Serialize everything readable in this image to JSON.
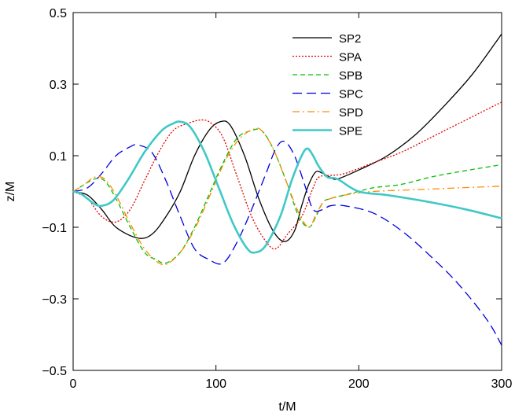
{
  "chart_data": {
    "type": "line",
    "xlabel": "t/M",
    "ylabel": "z/M",
    "xlim": [
      0,
      300
    ],
    "ylim": [
      -0.5,
      0.5
    ],
    "x_ticks": [
      0,
      100,
      200,
      300
    ],
    "x_tick_labels": [
      "0",
      "100",
      "200",
      "300"
    ],
    "y_ticks": [
      -0.5,
      -0.3,
      -0.1,
      0.1,
      0.3,
      0.5
    ],
    "y_tick_labels": [
      "−0.5",
      "−0.3",
      "−0.1",
      "0.1",
      "0.3",
      "0.5"
    ],
    "grid": false,
    "legend_position": "top-right",
    "series": [
      {
        "name": "SP2",
        "color": "#000000",
        "dash": "solid",
        "points": [
          [
            0,
            0
          ],
          [
            10,
            -0.01
          ],
          [
            20,
            -0.05
          ],
          [
            30,
            -0.1
          ],
          [
            45,
            -0.13
          ],
          [
            55,
            -0.12
          ],
          [
            65,
            -0.07
          ],
          [
            75,
            0.0
          ],
          [
            85,
            0.1
          ],
          [
            95,
            0.17
          ],
          [
            103,
            0.195
          ],
          [
            110,
            0.185
          ],
          [
            120,
            0.1
          ],
          [
            130,
            -0.02
          ],
          [
            140,
            -0.11
          ],
          [
            148,
            -0.14
          ],
          [
            155,
            -0.11
          ],
          [
            160,
            -0.04
          ],
          [
            165,
            0.02
          ],
          [
            170,
            0.055
          ],
          [
            175,
            0.05
          ],
          [
            180,
            0.04
          ],
          [
            185,
            0.035
          ],
          [
            200,
            0.06
          ],
          [
            220,
            0.1
          ],
          [
            240,
            0.16
          ],
          [
            260,
            0.24
          ],
          [
            280,
            0.33
          ],
          [
            300,
            0.44
          ]
        ]
      },
      {
        "name": "SPA",
        "color": "#e00000",
        "dash": "dotted",
        "points": [
          [
            0,
            0
          ],
          [
            10,
            -0.02
          ],
          [
            20,
            -0.07
          ],
          [
            30,
            -0.085
          ],
          [
            40,
            -0.05
          ],
          [
            50,
            0.03
          ],
          [
            60,
            0.11
          ],
          [
            70,
            0.17
          ],
          [
            80,
            0.19
          ],
          [
            90,
            0.2
          ],
          [
            97,
            0.19
          ],
          [
            105,
            0.15
          ],
          [
            115,
            0.04
          ],
          [
            125,
            -0.07
          ],
          [
            135,
            -0.14
          ],
          [
            142,
            -0.16
          ],
          [
            150,
            -0.12
          ],
          [
            160,
            -0.07
          ],
          [
            168,
            0.01
          ],
          [
            172,
            0.04
          ],
          [
            180,
            0.045
          ],
          [
            190,
            0.05
          ],
          [
            210,
            0.08
          ],
          [
            230,
            0.11
          ],
          [
            250,
            0.15
          ],
          [
            270,
            0.19
          ],
          [
            290,
            0.23
          ],
          [
            300,
            0.25
          ]
        ]
      },
      {
        "name": "SPB",
        "color": "#00c000",
        "dash": "dashed",
        "points": [
          [
            0,
            0
          ],
          [
            8,
            0.02
          ],
          [
            15,
            0.035
          ],
          [
            22,
            0.03
          ],
          [
            30,
            -0.02
          ],
          [
            40,
            -0.1
          ],
          [
            50,
            -0.17
          ],
          [
            58,
            -0.19
          ],
          [
            65,
            -0.2
          ],
          [
            75,
            -0.17
          ],
          [
            85,
            -0.1
          ],
          [
            95,
            -0.01
          ],
          [
            105,
            0.08
          ],
          [
            115,
            0.15
          ],
          [
            125,
            0.17
          ],
          [
            132,
            0.17
          ],
          [
            140,
            0.12
          ],
          [
            150,
            0.02
          ],
          [
            158,
            -0.07
          ],
          [
            165,
            -0.1
          ],
          [
            170,
            -0.07
          ],
          [
            175,
            -0.03
          ],
          [
            180,
            -0.02
          ],
          [
            190,
            -0.01
          ],
          [
            210,
            0.01
          ],
          [
            230,
            0.02
          ],
          [
            250,
            0.04
          ],
          [
            270,
            0.055
          ],
          [
            300,
            0.075
          ]
        ]
      },
      {
        "name": "SPC",
        "color": "#0000e0",
        "dash": "longdash",
        "points": [
          [
            0,
            0
          ],
          [
            10,
            0.01
          ],
          [
            20,
            0.05
          ],
          [
            30,
            0.1
          ],
          [
            40,
            0.125
          ],
          [
            45,
            0.13
          ],
          [
            55,
            0.11
          ],
          [
            65,
            0.03
          ],
          [
            75,
            -0.07
          ],
          [
            85,
            -0.16
          ],
          [
            95,
            -0.19
          ],
          [
            105,
            -0.2
          ],
          [
            115,
            -0.14
          ],
          [
            125,
            -0.05
          ],
          [
            135,
            0.05
          ],
          [
            142,
            0.12
          ],
          [
            148,
            0.14
          ],
          [
            155,
            0.1
          ],
          [
            162,
            0.02
          ],
          [
            168,
            -0.05
          ],
          [
            175,
            -0.05
          ],
          [
            180,
            -0.04
          ],
          [
            190,
            -0.04
          ],
          [
            210,
            -0.06
          ],
          [
            230,
            -0.11
          ],
          [
            250,
            -0.18
          ],
          [
            270,
            -0.26
          ],
          [
            290,
            -0.36
          ],
          [
            300,
            -0.43
          ]
        ]
      },
      {
        "name": "SPD",
        "color": "#ff8c00",
        "dash": "dashdot",
        "points": [
          [
            0,
            0
          ],
          [
            8,
            0.02
          ],
          [
            15,
            0.04
          ],
          [
            22,
            0.035
          ],
          [
            30,
            -0.01
          ],
          [
            40,
            -0.09
          ],
          [
            50,
            -0.16
          ],
          [
            60,
            -0.2
          ],
          [
            67,
            -0.2
          ],
          [
            77,
            -0.16
          ],
          [
            87,
            -0.09
          ],
          [
            97,
            0.0
          ],
          [
            107,
            0.09
          ],
          [
            117,
            0.15
          ],
          [
            127,
            0.175
          ],
          [
            132,
            0.17
          ],
          [
            140,
            0.12
          ],
          [
            150,
            0.02
          ],
          [
            158,
            -0.06
          ],
          [
            165,
            -0.1
          ],
          [
            170,
            -0.065
          ],
          [
            175,
            -0.03
          ],
          [
            180,
            -0.02
          ],
          [
            190,
            -0.01
          ],
          [
            210,
            0.0
          ],
          [
            240,
            0.005
          ],
          [
            270,
            0.01
          ],
          [
            300,
            0.015
          ]
        ]
      },
      {
        "name": "SPE",
        "color": "#40c8c8",
        "dash": "solid-thick",
        "points": [
          [
            0,
            0
          ],
          [
            5,
            -0.005
          ],
          [
            10,
            -0.02
          ],
          [
            15,
            -0.035
          ],
          [
            20,
            -0.04
          ],
          [
            28,
            -0.025
          ],
          [
            38,
            0.03
          ],
          [
            50,
            0.11
          ],
          [
            62,
            0.17
          ],
          [
            70,
            0.19
          ],
          [
            75,
            0.195
          ],
          [
            82,
            0.18
          ],
          [
            92,
            0.11
          ],
          [
            102,
            0.01
          ],
          [
            112,
            -0.09
          ],
          [
            122,
            -0.16
          ],
          [
            128,
            -0.17
          ],
          [
            135,
            -0.15
          ],
          [
            145,
            -0.07
          ],
          [
            153,
            0.03
          ],
          [
            160,
            0.1
          ],
          [
            164,
            0.12
          ],
          [
            168,
            0.1
          ],
          [
            172,
            0.07
          ],
          [
            178,
            0.04
          ],
          [
            185,
            0.035
          ],
          [
            200,
            0.0
          ],
          [
            220,
            -0.01
          ],
          [
            250,
            -0.03
          ],
          [
            275,
            -0.05
          ],
          [
            300,
            -0.075
          ]
        ]
      }
    ]
  }
}
